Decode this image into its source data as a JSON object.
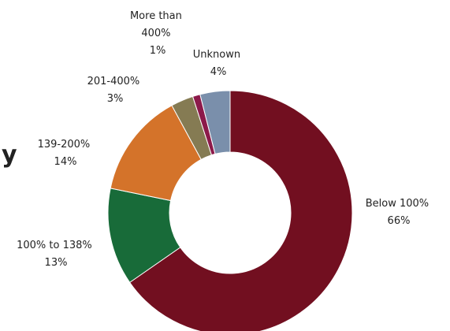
{
  "chart_data": {
    "type": "pie",
    "donut": true,
    "title": "",
    "legend": "none",
    "slices": [
      {
        "category": "Below 100%",
        "value": 66,
        "label": "66%",
        "color": "#720F20"
      },
      {
        "category": "100% to 138%",
        "value": 13,
        "label": "13%",
        "color": "#186B39"
      },
      {
        "category": "139-200%",
        "value": 14,
        "label": "14%",
        "color": "#D4732A"
      },
      {
        "category": "201-400%",
        "value": 3,
        "label": "3%",
        "color": "#857B53"
      },
      {
        "category": "More than 400%",
        "value": 1,
        "label": "1%",
        "color": "#8C1A4A"
      },
      {
        "category": "Unknown",
        "value": 4,
        "label": "4%",
        "color": "#7A8FAB"
      }
    ]
  },
  "clipped_text": "y"
}
